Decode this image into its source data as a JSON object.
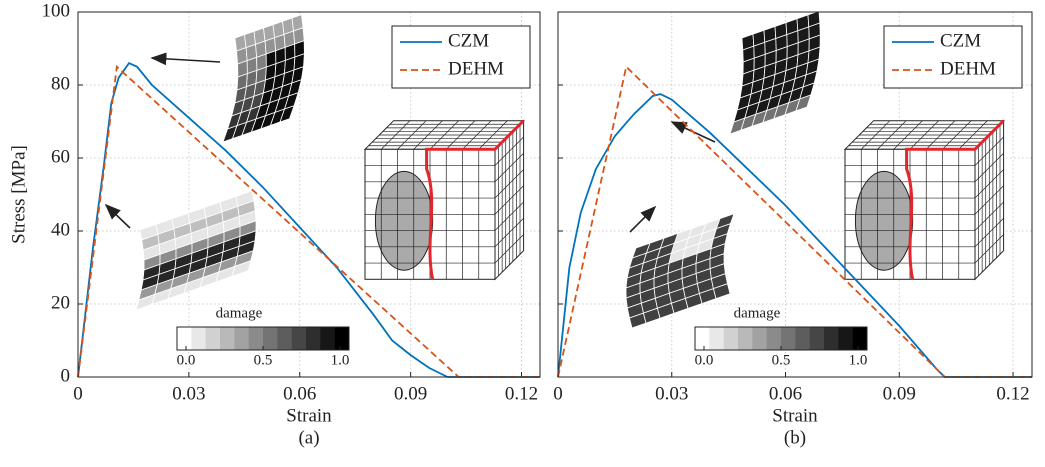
{
  "chart_data": [
    {
      "type": "line",
      "x_label": "Strain",
      "y_label": "Stress [MPa]",
      "caption": "(a)",
      "xlim": [
        0,
        0.125
      ],
      "xticks": [
        0,
        0.03,
        0.06,
        0.09,
        0.12
      ],
      "ylim": [
        0,
        100
      ],
      "yticks": [
        0,
        20,
        40,
        60,
        80,
        100
      ],
      "grid": true,
      "legend": "upper right",
      "series": [
        {
          "name": "CZM",
          "color": "#0072bd",
          "dash": false,
          "x": [
            0,
            0.004,
            0.007,
            0.009,
            0.011,
            0.0138,
            0.016,
            0.02,
            0.03,
            0.04,
            0.05,
            0.06,
            0.07,
            0.08,
            0.085,
            0.09,
            0.095,
            0.1,
            0.125
          ],
          "values": [
            0,
            35,
            58,
            75,
            82,
            86,
            85,
            80,
            71,
            62,
            52,
            41,
            30,
            17,
            10,
            6,
            2.5,
            0,
            0
          ]
        },
        {
          "name": "DEHM",
          "color": "#d95319",
          "dash": true,
          "x": [
            0,
            0.0105,
            0.103,
            0.125
          ],
          "values": [
            0,
            85,
            0,
            0
          ]
        }
      ],
      "colorbar": {
        "label": "damage",
        "ticks": [
          {
            "value": 0,
            "label": "0.0"
          },
          {
            "value": 0.5,
            "label": "0.5"
          },
          {
            "value": 1,
            "label": "1.0"
          }
        ]
      }
    },
    {
      "type": "line",
      "x_label": "Strain",
      "caption": "(b)",
      "show_ytick_labels": false,
      "xlim": [
        0,
        0.125
      ],
      "xticks": [
        0,
        0.03,
        0.06,
        0.09,
        0.12
      ],
      "ylim": [
        0,
        100
      ],
      "yticks": [
        0,
        20,
        40,
        60,
        80,
        100
      ],
      "grid": true,
      "legend": "upper right",
      "series": [
        {
          "name": "CZM",
          "color": "#0072bd",
          "dash": false,
          "x": [
            0,
            0.003,
            0.006,
            0.01,
            0.015,
            0.02,
            0.025,
            0.027,
            0.03,
            0.04,
            0.05,
            0.06,
            0.07,
            0.08,
            0.09,
            0.1,
            0.102,
            0.125
          ],
          "values": [
            0,
            30,
            45,
            57,
            66,
            72,
            77,
            77.5,
            76,
            67,
            57,
            47,
            36,
            25,
            14,
            2,
            0,
            0
          ]
        },
        {
          "name": "DEHM",
          "color": "#d95319",
          "dash": true,
          "x": [
            0,
            0.018,
            0.102,
            0.125
          ],
          "values": [
            0,
            85,
            0,
            0
          ]
        }
      ],
      "colorbar": {
        "label": "damage",
        "ticks": [
          {
            "value": 0,
            "label": "0.0"
          },
          {
            "value": 0.5,
            "label": "0.5"
          },
          {
            "value": 1,
            "label": "1.0"
          }
        ]
      }
    }
  ]
}
